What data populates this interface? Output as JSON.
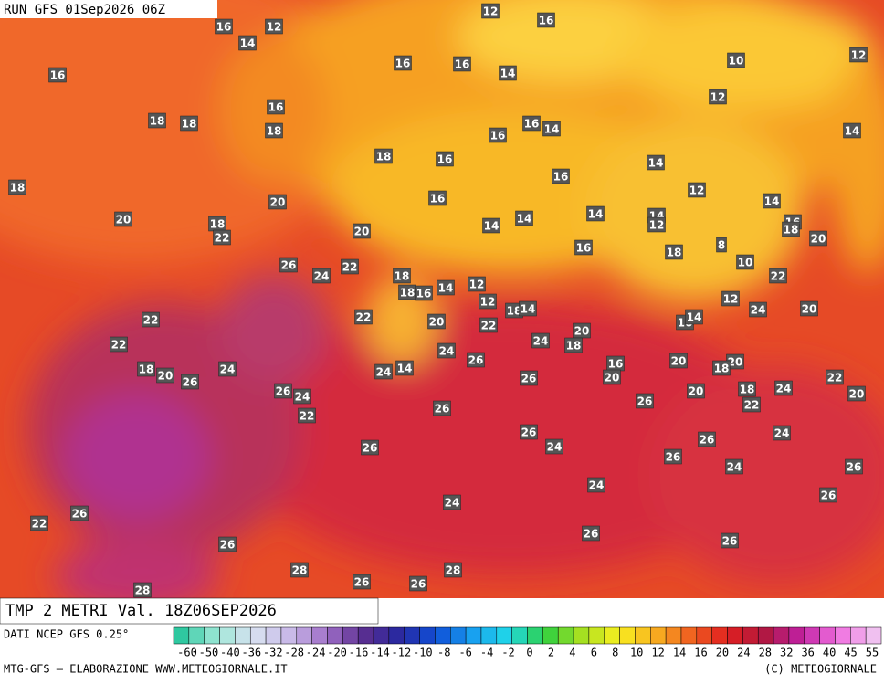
{
  "header": {
    "run": "RUN GFS 01Sep2026 06Z"
  },
  "map_labels": [
    16,
    12,
    12,
    16,
    14,
    16,
    16,
    16,
    14,
    10,
    12,
    16,
    12,
    18,
    18,
    18,
    16,
    14,
    16,
    14,
    18,
    18,
    16,
    16,
    14,
    20,
    16,
    12,
    14,
    20,
    18,
    22,
    20,
    14,
    14,
    14,
    14,
    12,
    16,
    18,
    20,
    8,
    26,
    24,
    22,
    16,
    18,
    10,
    18,
    18,
    16,
    14,
    12,
    12,
    22,
    22,
    22,
    20,
    22,
    18,
    14,
    12,
    24,
    20,
    16,
    14,
    22,
    20,
    18,
    24,
    24,
    26,
    18,
    20,
    26,
    24,
    24,
    14,
    16,
    20,
    20,
    20,
    18,
    22,
    26,
    26,
    24,
    18,
    20,
    24,
    20,
    26,
    22,
    22,
    26,
    26,
    24,
    26,
    26,
    24,
    26,
    24,
    26,
    24,
    24,
    26,
    26,
    22,
    26,
    26,
    26,
    28,
    28,
    26,
    26,
    28
  ],
  "footer": {
    "title": "TMP 2 METRI Val. 18Z06SEP2026",
    "source": "DATI NCEP GFS 0.25°",
    "scale_labels": [
      "-60",
      "-50",
      "-40",
      "-36",
      "-32",
      "-28",
      "-24",
      "-20",
      "-16",
      "-14",
      "-12",
      "-10",
      "-8",
      "-6",
      "-4",
      "-2",
      "0",
      "2",
      "4",
      "6",
      "8",
      "10",
      "12",
      "14",
      "16",
      "20",
      "24",
      "28",
      "32",
      "36",
      "40",
      "45",
      "55"
    ],
    "credit": "MTG-GFS — ELABORAZIONE WWW.METEOGIORNALE.IT",
    "copyright": "(C) METEOGIORNALE"
  }
}
